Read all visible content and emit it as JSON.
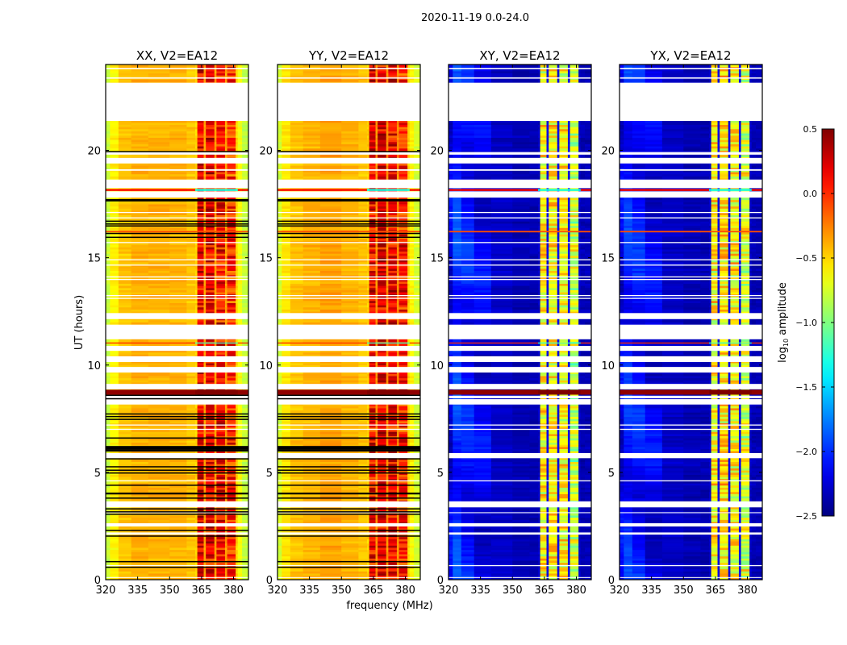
{
  "chart_data": {
    "type": "heatmap",
    "title": "2020-11-19 0.0-24.0",
    "xlabel": "frequency (MHz)",
    "ylabel": "UT (hours)",
    "xlim": [
      320,
      387
    ],
    "ylim": [
      0,
      24
    ],
    "xticks": [
      320,
      335,
      350,
      365,
      380
    ],
    "xtick_labels": [
      "320",
      "335",
      "350",
      "365",
      "380"
    ],
    "yticks": [
      0,
      5,
      10,
      15,
      20
    ],
    "ytick_labels": [
      "0",
      "5",
      "10",
      "15",
      "20"
    ],
    "grid": false,
    "freq_bin_edges": [
      320,
      322,
      326,
      332,
      340,
      350,
      358,
      362,
      363,
      366,
      367,
      371,
      372,
      376,
      377,
      381,
      382,
      384,
      387
    ],
    "time_step_hours": 0.1,
    "panels": [
      {
        "title": "XX, V2=EA12",
        "column_values": [
          -0.8,
          -0.6,
          -0.45,
          -0.4,
          -0.4,
          -0.4,
          -0.45,
          -0.5,
          0.2,
          -0.35,
          0.15,
          -0.35,
          0.1,
          -0.35,
          0.0,
          -0.5,
          -0.65,
          -0.8
        ],
        "show_black_lines": true
      },
      {
        "title": "YY, V2=EA12",
        "column_values": [
          -0.75,
          -0.55,
          -0.45,
          -0.4,
          -0.35,
          -0.4,
          -0.45,
          -0.5,
          0.15,
          -0.3,
          0.2,
          -0.3,
          0.15,
          -0.3,
          0.05,
          -0.5,
          -0.6,
          -0.75
        ],
        "show_black_lines": true
      },
      {
        "title": "XY, V2=EA12",
        "column_values": [
          -2.2,
          -2.0,
          -2.1,
          -2.2,
          -2.3,
          -2.35,
          -2.35,
          -2.3,
          -0.6,
          -2.2,
          -0.6,
          -2.2,
          -0.65,
          -2.2,
          -0.8,
          -2.3,
          -2.35,
          -2.35
        ],
        "show_black_lines": false
      },
      {
        "title": "YX, V2=EA12",
        "column_values": [
          -2.2,
          -2.05,
          -2.1,
          -2.2,
          -2.3,
          -2.35,
          -2.35,
          -2.3,
          -0.6,
          -2.2,
          -0.55,
          -2.2,
          -0.6,
          -2.2,
          -0.75,
          -2.3,
          -2.35,
          -2.35
        ],
        "show_black_lines": false
      }
    ],
    "flagged_hours": [
      [
        23.78,
        23.84
      ],
      [
        23.34,
        23.4
      ],
      [
        21.37,
        23.15
      ],
      [
        19.8,
        19.92
      ],
      [
        19.39,
        19.65
      ],
      [
        19.05,
        19.12
      ],
      [
        18.24,
        18.64
      ],
      [
        17.8,
        18.09
      ],
      [
        17.08,
        17.13
      ],
      [
        16.83,
        16.88
      ],
      [
        15.68,
        15.73
      ],
      [
        14.88,
        14.93
      ],
      [
        14.63,
        14.68
      ],
      [
        14.08,
        14.13
      ],
      [
        13.96,
        14.01
      ],
      [
        13.21,
        13.26
      ],
      [
        13.08,
        13.13
      ],
      [
        12.14,
        12.42
      ],
      [
        11.2,
        11.88
      ],
      [
        10.66,
        10.89
      ],
      [
        10.14,
        10.41
      ],
      [
        9.65,
        9.91
      ],
      [
        8.87,
        9.12
      ],
      [
        8.45,
        8.57
      ],
      [
        8.16,
        8.41
      ],
      [
        7.18,
        7.23
      ],
      [
        6.98,
        7.03
      ],
      [
        5.66,
        5.9
      ],
      [
        4.58,
        4.63
      ],
      [
        3.37,
        3.65
      ],
      [
        3.1,
        3.14
      ],
      [
        2.48,
        2.63
      ],
      [
        2.1,
        2.2
      ],
      [
        0.63,
        0.68
      ],
      [
        0.08,
        0.12
      ]
    ],
    "black_line_hours": [
      19.94,
      17.7,
      17.65,
      16.7,
      16.57,
      16.48,
      16.13,
      15.95,
      8.59,
      8.43,
      7.72,
      7.6,
      7.47,
      6.6,
      6.0,
      6.05,
      6.1,
      6.15,
      6.2,
      5.63,
      5.26,
      5.1,
      4.97,
      4.4,
      4.0,
      4.03,
      3.8,
      3.3,
      3.16,
      3.05,
      2.3,
      2.03,
      0.84,
      0.58
    ],
    "special_rows": [
      {
        "hours": [
          8.62,
          8.85
        ],
        "low_freq_value": 0.45,
        "band_value": 0.5
      },
      {
        "hours": [
          18.11,
          18.2
        ],
        "low_freq_value": 0.1,
        "band_value": -1.3
      },
      {
        "hours": [
          11.0,
          11.05
        ],
        "low_freq_value": 0.0,
        "band_value": -1.2
      },
      {
        "hours": [
          16.18,
          16.25
        ],
        "low_freq_value": -0.1,
        "band_value": -0.1
      }
    ],
    "colorbar": {
      "label_main": "log",
      "label_sub": "10",
      "label_rest": " amplitude",
      "range": [
        -2.5,
        0.5
      ],
      "colormap": "jet",
      "ticks": [
        0.5,
        0.0,
        -0.5,
        -1.0,
        -1.5,
        -2.0,
        -2.5
      ],
      "tick_labels": [
        "0.5",
        "0.0",
        "−0.5",
        "−1.0",
        "−1.5",
        "−2.0",
        "−2.5"
      ]
    }
  }
}
